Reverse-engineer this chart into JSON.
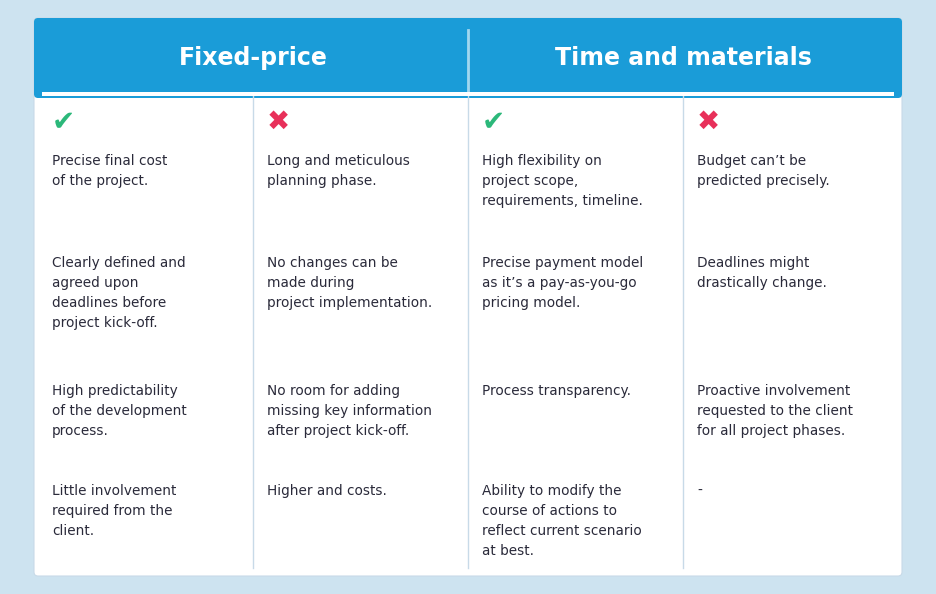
{
  "bg_color": "#cde3f0",
  "table_bg": "#ffffff",
  "header_bg": "#1a9cd8",
  "header_text_color": "#ffffff",
  "header_font_size": 17,
  "header_font_weight": "bold",
  "body_font_size": 9.8,
  "body_text_color": "#2a2a3a",
  "check_color": "#2cb87a",
  "cross_color": "#e8305a",
  "divider_color": "#c8dae8",
  "headers": [
    "Fixed-price",
    "Time and materials"
  ],
  "columns": [
    {
      "type": "pro",
      "items": [
        "Precise final cost\nof the project.",
        "Clearly defined and\nagreed upon\ndeadlines before\nproject kick-off.",
        "High predictability\nof the development\nprocess.",
        "Little involvement\nrequired from the\nclient."
      ]
    },
    {
      "type": "con",
      "items": [
        "Long and meticulous\nplanning phase.",
        "No changes can be\nmade during\nproject implementation.",
        "No room for adding\nmissing key information\nafter project kick-off.",
        "Higher and costs."
      ]
    },
    {
      "type": "pro",
      "items": [
        "High flexibility on\nproject scope,\nrequirements, timeline.",
        "Precise payment model\nas it’s a pay-as-you-go\npricing model.",
        "Process transparency.",
        "Ability to modify the\ncourse of actions to\nreflect current scenario\nat best."
      ]
    },
    {
      "type": "con",
      "items": [
        "Budget can’t be\npredicted precisely.",
        "Deadlines might\ndrastically change.",
        "Proactive involvement\nrequested to the client\nfor all project phases.",
        "-"
      ]
    }
  ]
}
